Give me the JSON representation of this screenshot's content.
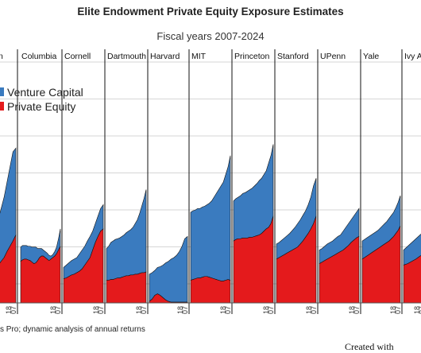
{
  "title": "Elite Endowment Private Equity Exposure Estimates",
  "subtitle": "Fiscal years 2007-2024",
  "source_note": "s Pro; dynamic analysis of annual returns",
  "credit": "Created with",
  "legend": [
    {
      "label": "Venture Capital",
      "color": "#3a7bbf"
    },
    {
      "label": "Private Equity",
      "color": "#e41a1c"
    }
  ],
  "chart_data": {
    "type": "area",
    "stacked": true,
    "facet_layout": "small multiples, one panel per school",
    "tick_labels": [
      "18",
      "07"
    ],
    "grid": true,
    "legend_position": "top-left",
    "series_names": [
      "Venture Capital",
      "Private Equity"
    ],
    "panels": [
      {
        "name": "Brown",
        "label": "n",
        "pe": [
          0.45,
          0.5,
          0.55,
          0.6,
          0.68,
          0.75,
          0.82,
          0.9
        ],
        "total": [
          0.98,
          1.1,
          1.25,
          1.4,
          1.6,
          1.8,
          2.0,
          2.05
        ]
      },
      {
        "name": "Columbia",
        "label": "Columbia",
        "pe": [
          0.55,
          0.57,
          0.58,
          0.58,
          0.57,
          0.56,
          0.54,
          0.52,
          0.53,
          0.56,
          0.6,
          0.62,
          0.62,
          0.6,
          0.58,
          0.56,
          0.58,
          0.6,
          0.62,
          0.65,
          0.7,
          0.75
        ],
        "total": [
          0.74,
          0.76,
          0.76,
          0.76,
          0.75,
          0.75,
          0.74,
          0.74,
          0.74,
          0.72,
          0.72,
          0.72,
          0.7,
          0.68,
          0.66,
          0.63,
          0.62,
          0.64,
          0.68,
          0.74,
          0.85,
          0.98
        ]
      },
      {
        "name": "Cornell",
        "label": "Cornell",
        "pe": [
          0.32,
          0.33,
          0.35,
          0.37,
          0.38,
          0.4,
          0.42,
          0.45,
          0.5,
          0.55,
          0.6,
          0.7,
          0.8,
          0.88,
          0.95,
          0.98
        ],
        "total": [
          0.47,
          0.5,
          0.53,
          0.56,
          0.58,
          0.6,
          0.65,
          0.7,
          0.75,
          0.82,
          0.88,
          0.95,
          1.05,
          1.15,
          1.25,
          1.3
        ]
      },
      {
        "name": "Dartmouth",
        "label": "Dartmouth",
        "pe": [
          0.3,
          0.3,
          0.31,
          0.31,
          0.32,
          0.33,
          0.33,
          0.34,
          0.35,
          0.36,
          0.36,
          0.37,
          0.37,
          0.38,
          0.38,
          0.39,
          0.4,
          0.4,
          0.41
        ],
        "total": [
          0.72,
          0.75,
          0.8,
          0.82,
          0.84,
          0.85,
          0.86,
          0.88,
          0.9,
          0.93,
          0.95,
          0.97,
          1.0,
          1.05,
          1.1,
          1.18,
          1.28,
          1.38,
          1.5
        ]
      },
      {
        "name": "Harvard",
        "label": "Harvard",
        "pe": [
          0.02,
          0.05,
          0.1,
          0.12,
          0.1,
          0.07,
          0.04,
          0.02,
          0.01,
          0.01,
          0.01,
          0.01,
          0.01,
          0.01,
          0.01
        ],
        "total": [
          0.38,
          0.4,
          0.43,
          0.47,
          0.48,
          0.5,
          0.53,
          0.55,
          0.58,
          0.6,
          0.63,
          0.68,
          0.75,
          0.85,
          0.88
        ]
      },
      {
        "name": "MIT",
        "label": "MIT",
        "pe": [
          0.3,
          0.31,
          0.32,
          0.33,
          0.33,
          0.34,
          0.35,
          0.35,
          0.34,
          0.33,
          0.32,
          0.31,
          0.3,
          0.29,
          0.29,
          0.3,
          0.31,
          0.3
        ],
        "total": [
          1.2,
          1.22,
          1.23,
          1.25,
          1.25,
          1.27,
          1.28,
          1.3,
          1.32,
          1.35,
          1.4,
          1.45,
          1.5,
          1.55,
          1.6,
          1.7,
          1.8,
          1.95
        ]
      },
      {
        "name": "Princeton",
        "label": "Princeton",
        "pe": [
          0.82,
          0.84,
          0.85,
          0.85,
          0.86,
          0.86,
          0.86,
          0.87,
          0.87,
          0.88,
          0.89,
          0.9,
          0.92,
          0.95,
          0.98,
          1.0,
          1.05,
          1.15
        ],
        "total": [
          1.35,
          1.38,
          1.4,
          1.42,
          1.45,
          1.46,
          1.48,
          1.5,
          1.52,
          1.55,
          1.58,
          1.62,
          1.65,
          1.7,
          1.75,
          1.85,
          1.95,
          2.1
        ]
      },
      {
        "name": "Stanford",
        "label": "Stanford",
        "pe": [
          0.58,
          0.6,
          0.62,
          0.64,
          0.66,
          0.68,
          0.7,
          0.72,
          0.74,
          0.78,
          0.82,
          0.87,
          0.92,
          0.98,
          1.05,
          1.15
        ],
        "total": [
          0.78,
          0.8,
          0.83,
          0.86,
          0.89,
          0.92,
          0.96,
          1.0,
          1.05,
          1.1,
          1.16,
          1.22,
          1.3,
          1.4,
          1.55,
          1.65
        ]
      },
      {
        "name": "UPenn",
        "label": "UPenn",
        "pe": [
          0.52,
          0.54,
          0.56,
          0.58,
          0.6,
          0.62,
          0.64,
          0.66,
          0.68,
          0.7,
          0.73,
          0.76,
          0.8,
          0.83,
          0.86,
          0.88
        ],
        "total": [
          0.7,
          0.72,
          0.75,
          0.78,
          0.8,
          0.82,
          0.85,
          0.88,
          0.9,
          0.95,
          1.0,
          1.05,
          1.1,
          1.15,
          1.2,
          1.25
        ]
      },
      {
        "name": "Yale",
        "label": "Yale",
        "pe": [
          0.58,
          0.6,
          0.62,
          0.64,
          0.66,
          0.68,
          0.7,
          0.72,
          0.74,
          0.76,
          0.78,
          0.8,
          0.82,
          0.85,
          0.88,
          0.92,
          0.96,
          1.02
        ],
        "total": [
          0.82,
          0.84,
          0.86,
          0.88,
          0.9,
          0.92,
          0.94,
          0.96,
          0.99,
          1.02,
          1.05,
          1.08,
          1.12,
          1.16,
          1.2,
          1.26,
          1.33,
          1.42
        ]
      },
      {
        "name": "Ivy Average",
        "label": "Ivy Av",
        "pe": [
          0.5,
          0.52,
          0.55,
          0.58,
          0.62,
          0.65
        ],
        "total": [
          0.7,
          0.75,
          0.8,
          0.85,
          0.9,
          0.95
        ]
      }
    ]
  }
}
